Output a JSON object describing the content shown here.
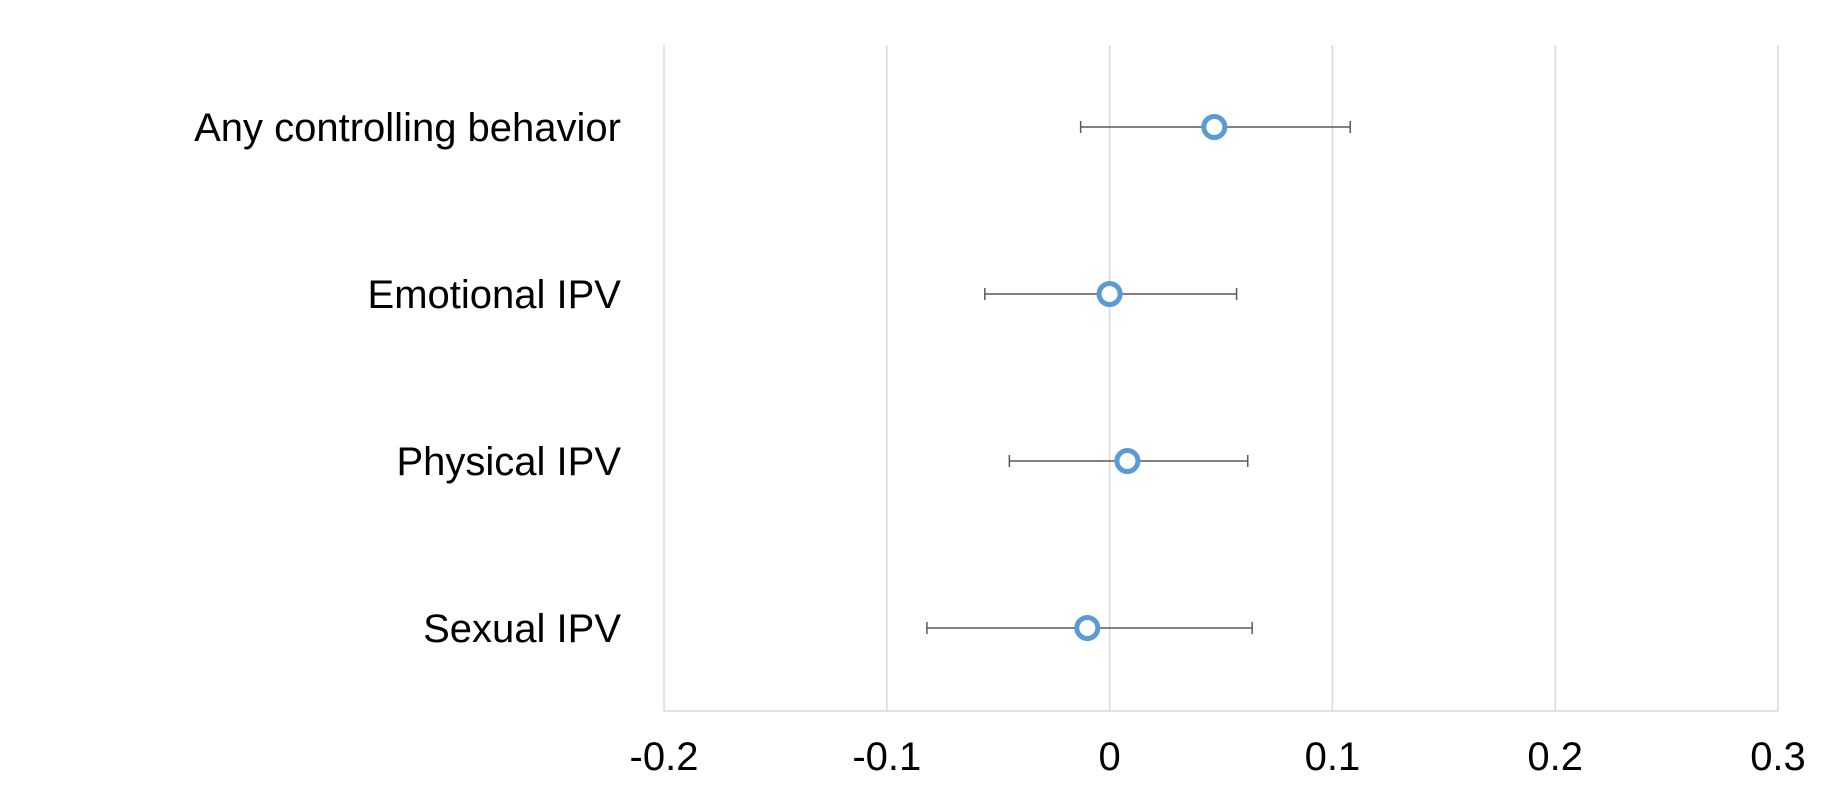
{
  "chart_data": {
    "type": "scatter",
    "title": "",
    "xlabel": "",
    "ylabel": "",
    "xlim": [
      -0.2,
      0.3
    ],
    "x_ticks": [
      -0.2,
      -0.1,
      0,
      0.1,
      0.2,
      0.3
    ],
    "x_tick_labels": [
      "-0.2",
      "-0.1",
      "0",
      "0.1",
      "0.2",
      "0.3"
    ],
    "grid": "vertical",
    "legend": "none",
    "categories": [
      "Any controlling behavior",
      "Emotional IPV",
      "Physical IPV",
      "Sexual IPV"
    ],
    "points": [
      {
        "category": "Any controlling behavior",
        "estimate": 0.047,
        "lower": -0.013,
        "upper": 0.108
      },
      {
        "category": "Emotional IPV",
        "estimate": 0.0,
        "lower": -0.056,
        "upper": 0.057
      },
      {
        "category": "Physical IPV",
        "estimate": 0.008,
        "lower": -0.045,
        "upper": 0.062
      },
      {
        "category": "Sexual IPV",
        "estimate": -0.01,
        "lower": -0.082,
        "upper": 0.064
      }
    ],
    "colors": {
      "marker": "#5b9bd5",
      "errorbar": "#595959",
      "grid": "#d9d9d9"
    }
  }
}
